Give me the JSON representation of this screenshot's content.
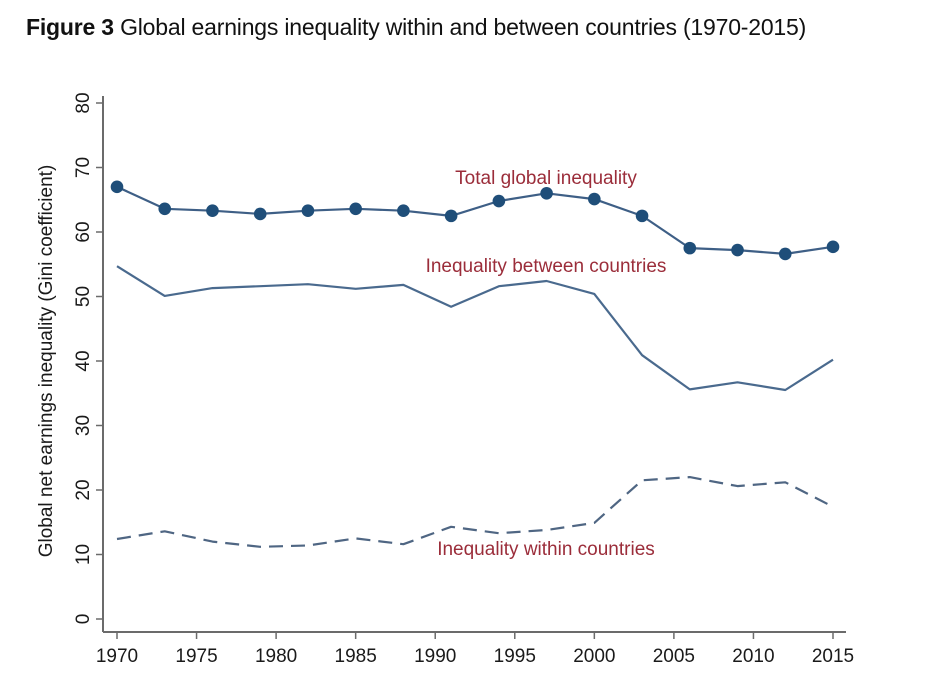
{
  "figure": {
    "label": "Figure 3",
    "title": "Global earnings inequality within and between countries (1970-2015)"
  },
  "chart_data": {
    "type": "line",
    "title": "Global earnings inequality within and between countries (1970-2015)",
    "xlabel": "",
    "ylabel": "Global net earnings inequality (Gini coefficient)",
    "xlim": [
      1970,
      2015
    ],
    "ylim": [
      0,
      80
    ],
    "x_ticks": [
      1970,
      1975,
      1980,
      1985,
      1990,
      1995,
      2000,
      2005,
      2010,
      2015
    ],
    "y_ticks": [
      0,
      10,
      20,
      30,
      40,
      50,
      60,
      70,
      80
    ],
    "grid": false,
    "legend": "inline labels",
    "x": [
      1970,
      1973,
      1976,
      1979,
      1982,
      1985,
      1988,
      1991,
      1994,
      1997,
      2000,
      2003,
      2006,
      2009,
      2012,
      2015
    ],
    "series": [
      {
        "name": "Total global inequality",
        "style": "solid-markers",
        "color": "#1f4e79",
        "label_color": "#9b2d3a",
        "values": [
          67.0,
          63.6,
          63.3,
          62.8,
          63.3,
          63.6,
          63.3,
          62.5,
          64.8,
          66.0,
          65.1,
          62.5,
          57.5,
          57.2,
          56.6,
          57.7
        ]
      },
      {
        "name": "Inequality between countries",
        "style": "solid",
        "color": "#4a6a8e",
        "label_color": "#9b2d3a",
        "values": [
          54.7,
          50.1,
          51.3,
          51.6,
          51.9,
          51.2,
          51.8,
          48.4,
          51.6,
          52.4,
          50.4,
          40.9,
          35.6,
          36.7,
          35.5,
          40.2
        ]
      },
      {
        "name": "Inequality within countries",
        "style": "dashed",
        "color": "#4a6a8e",
        "label_color": "#9b2d3a",
        "values": [
          12.4,
          13.6,
          12.0,
          11.2,
          11.4,
          12.5,
          11.6,
          14.3,
          13.3,
          13.8,
          14.9,
          21.5,
          22.0,
          20.6,
          21.2,
          17.4
        ]
      }
    ]
  }
}
